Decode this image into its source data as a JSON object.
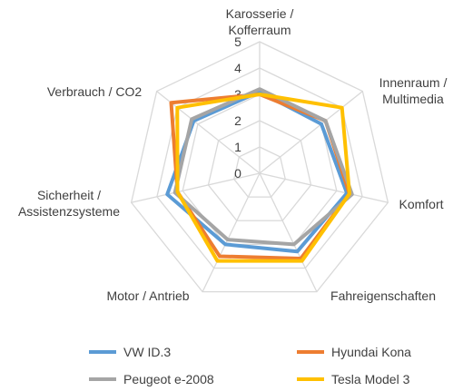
{
  "chart_data": {
    "type": "radar",
    "axes": [
      [
        "Karosserie /",
        "Kofferraum"
      ],
      [
        "Innenraum /",
        "Multimedia"
      ],
      [
        "Komfort"
      ],
      [
        "Fahreigenschaften"
      ],
      [
        "Motor / Antrieb"
      ],
      [
        "Sicherheit /",
        "Assistenzsysteme"
      ],
      [
        "Verbrauch / CO2"
      ]
    ],
    "range": [
      0,
      5
    ],
    "ticks": [
      "0",
      "1",
      "2",
      "3",
      "4",
      "5"
    ],
    "grid": true,
    "legend_position": "bottom",
    "series": [
      {
        "name": "VW ID.3",
        "color": "#5B9BD5",
        "values": [
          3.1,
          3.0,
          3.4,
          3.3,
          3.0,
          3.6,
          3.2
        ]
      },
      {
        "name": "Hyundai Kona",
        "color": "#ED7D31",
        "values": [
          3.0,
          3.2,
          3.5,
          3.6,
          3.5,
          3.2,
          4.3
        ]
      },
      {
        "name": "Peugeot e-2008",
        "color": "#A5A5A5",
        "values": [
          3.2,
          3.2,
          3.6,
          3.0,
          2.8,
          3.3,
          3.3
        ]
      },
      {
        "name": "Tesla Model 3",
        "color": "#FFC000",
        "values": [
          3.0,
          4.0,
          3.5,
          3.7,
          3.7,
          3.2,
          4.0
        ]
      }
    ]
  }
}
